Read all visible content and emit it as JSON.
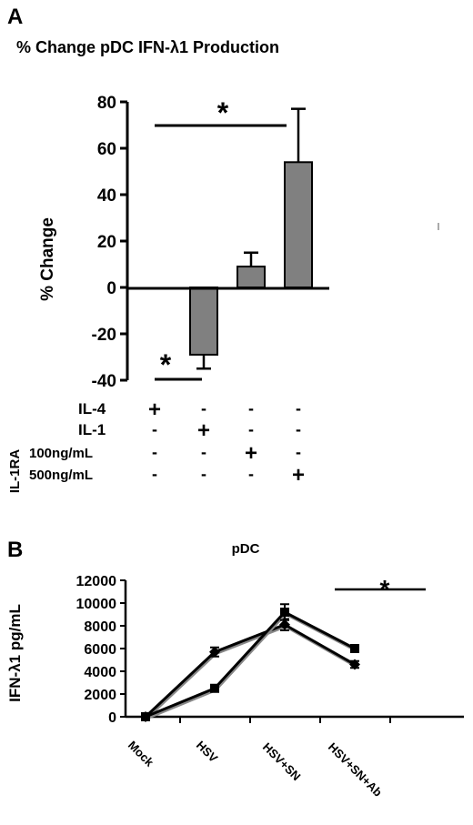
{
  "chart_data": [
    {
      "panel_label": "A",
      "type": "bar",
      "title": "% Change pDC IFN-λ1 Production",
      "ylabel": "% Change",
      "ylim": [
        -40,
        80
      ],
      "yticks": [
        -40,
        -20,
        0,
        20,
        40,
        60,
        80
      ],
      "values": [
        0,
        -29,
        9,
        54
      ],
      "errors": [
        0,
        6,
        6,
        23
      ],
      "bar_color": "#808080",
      "conditions": [
        {
          "label": "IL-4",
          "marks": [
            "+",
            "-",
            "-",
            "-"
          ]
        },
        {
          "label": "IL-1",
          "marks": [
            "-",
            "+",
            "-",
            "-"
          ]
        },
        {
          "label": "100ng/mL",
          "marks": [
            "-",
            "-",
            "+",
            "-"
          ]
        },
        {
          "label": "500ng/mL",
          "marks": [
            "-",
            "-",
            "-",
            "+"
          ]
        }
      ],
      "group_label": "IL-1RA",
      "significance": [
        {
          "symbol": "*",
          "from_index": 0,
          "to_index": 3
        },
        {
          "symbol": "*",
          "from_index": 0,
          "to_index": 1
        }
      ]
    },
    {
      "panel_label": "B",
      "type": "line",
      "title": "pDC",
      "ylabel": "IFN-λ1 pg/mL",
      "ylim": [
        0,
        12000
      ],
      "yticks": [
        0,
        2000,
        4000,
        6000,
        8000,
        10000,
        12000
      ],
      "categories": [
        "Mock",
        "HSV",
        "HSV+SN",
        "HSV+SN+Ab"
      ],
      "series": [
        {
          "marker": "diamond",
          "values": [
            0,
            5700,
            8100,
            4600
          ],
          "errors": [
            0,
            400,
            500,
            300
          ]
        },
        {
          "marker": "square",
          "values": [
            0,
            2500,
            9200,
            6000
          ],
          "errors": [
            0,
            200,
            700,
            200
          ]
        }
      ],
      "significance": [
        {
          "symbol": "*",
          "from_index": 2,
          "to_index": 3
        }
      ]
    }
  ]
}
